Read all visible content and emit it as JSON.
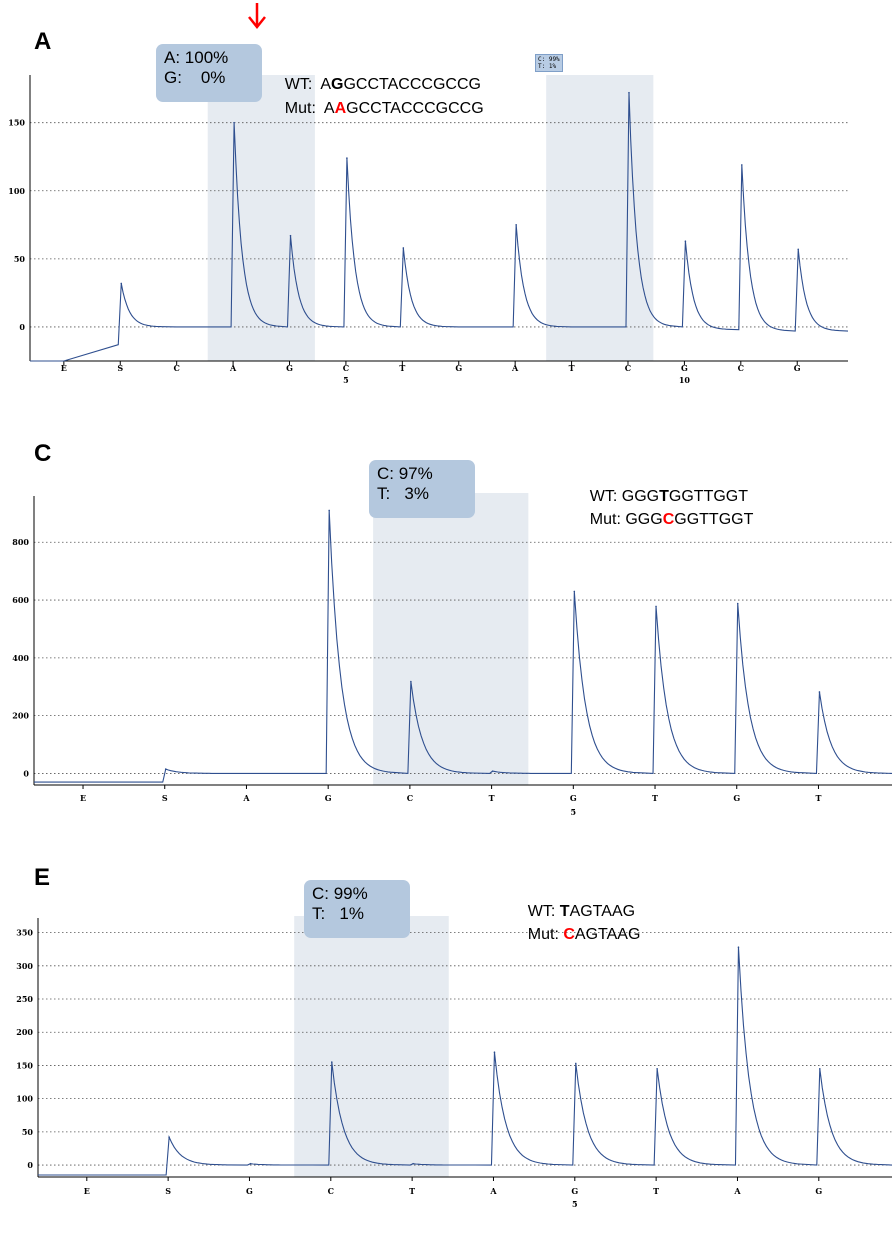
{
  "colors": {
    "trace": "#2f4f8f",
    "highlight": "#e6ebf1",
    "box": "#b4c8de",
    "mutation": "#ff0000",
    "grid": "#555555"
  },
  "arrow_icon": "red-down-arrow-icon",
  "chart_data": [
    {
      "panel": "A",
      "type": "line",
      "dispensation": [
        "E",
        "S",
        "C",
        "A",
        "G",
        "C",
        "T",
        "G",
        "A",
        "T",
        "C",
        "G",
        "C",
        "G"
      ],
      "position_labels": {
        "5": 5,
        "11": 10
      },
      "yticks": [
        0,
        50,
        100,
        150
      ],
      "ylim": [
        -25,
        185
      ],
      "grid": true,
      "baseline_values": [
        -25,
        -13,
        0,
        0,
        0,
        0,
        0,
        0,
        0,
        0,
        0,
        0,
        -2,
        -3
      ],
      "peaks": [
        0,
        32,
        0,
        150,
        67,
        124,
        58,
        0,
        75,
        0,
        172,
        63,
        119,
        57
      ],
      "highlight_ranges": [
        [
          3,
          4
        ],
        [
          9,
          10
        ]
      ],
      "pct_box": {
        "line1": "A: 100%",
        "line2": "G:    0%"
      },
      "wt_label": "WT:",
      "wt_pre": "A",
      "wt_bold": "G",
      "wt_post": "GCCTACCCGCCG",
      "mut_label": "Mut:",
      "mut_pre": "A",
      "mut_red": "A",
      "mut_post": "GCCTACCCGCCG",
      "small_box": {
        "line1": "C: 99%",
        "line2": "T: 1%"
      }
    },
    {
      "panel": "C",
      "type": "line",
      "dispensation": [
        "E",
        "S",
        "A",
        "G",
        "C",
        "T",
        "G",
        "T",
        "G",
        "T"
      ],
      "position_labels": {
        "6": 5
      },
      "yticks": [
        0,
        200,
        400,
        600,
        800
      ],
      "ylim": [
        -40,
        960
      ],
      "grid": true,
      "baseline_values": [
        -30,
        -30,
        0,
        0,
        0,
        0,
        0,
        0,
        0,
        0
      ],
      "peaks": [
        0,
        15,
        0,
        910,
        318,
        8,
        630,
        578,
        588,
        282
      ],
      "highlight_ranges": [
        [
          4,
          5
        ]
      ],
      "pct_box": {
        "line1": "C: 97%",
        "line2": "T:   3%"
      },
      "wt_label": "WT: ",
      "wt_pre": "GGG",
      "wt_bold": "T",
      "wt_post": "GGTTGGT",
      "mut_label": "Mut: ",
      "mut_pre": "GGG",
      "mut_red": "C",
      "mut_post": "GGTTGGT"
    },
    {
      "panel": "E",
      "type": "line",
      "dispensation": [
        "E",
        "S",
        "G",
        "C",
        "T",
        "A",
        "G",
        "T",
        "A",
        "G"
      ],
      "position_labels": {
        "6": 5
      },
      "yticks": [
        0,
        50,
        100,
        150,
        200,
        250,
        300,
        350
      ],
      "ylim": [
        -18,
        372
      ],
      "grid": true,
      "baseline_values": [
        -15,
        -15,
        0,
        0,
        0,
        0,
        0,
        0,
        0,
        0
      ],
      "peaks": [
        0,
        42,
        2,
        155,
        2,
        170,
        153,
        145,
        328,
        145
      ],
      "highlight_ranges": [
        [
          3,
          4
        ]
      ],
      "pct_box": {
        "line1": "C: 99%",
        "line2": "T:   1%"
      },
      "wt_label": "WT: ",
      "wt_pre": "",
      "wt_bold": "T",
      "wt_post": "AGTAAG",
      "mut_label": "Mut: ",
      "mut_pre": "",
      "mut_red": "C",
      "mut_post": "AGTAAG"
    }
  ]
}
